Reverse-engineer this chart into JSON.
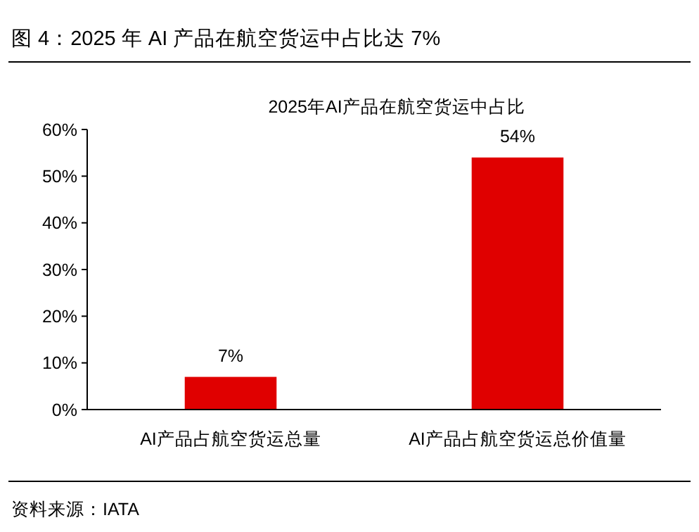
{
  "chart_data": {
    "type": "bar",
    "title": "图 4：2025 年 AI 产品在航空货运中占比达 7%",
    "subtitle": "2025年AI产品在航空货运中占比",
    "categories": [
      "AI产品占航空货运总量",
      "AI产品占航空货运总价值量"
    ],
    "values": [
      7,
      54
    ],
    "color": "#e00000",
    "value_labels": [
      "7%",
      "54%"
    ],
    "ylim": [
      0,
      60
    ],
    "yticks": [
      {
        "value": 0,
        "label": "0%"
      },
      {
        "value": 10,
        "label": "10%"
      },
      {
        "value": 20,
        "label": "20%"
      },
      {
        "value": 30,
        "label": "30%"
      },
      {
        "value": 40,
        "label": "40%"
      },
      {
        "value": 50,
        "label": "50%"
      },
      {
        "value": 60,
        "label": "60%"
      }
    ],
    "grid": false,
    "annotations": [
      "资料来源：IATA"
    ]
  }
}
